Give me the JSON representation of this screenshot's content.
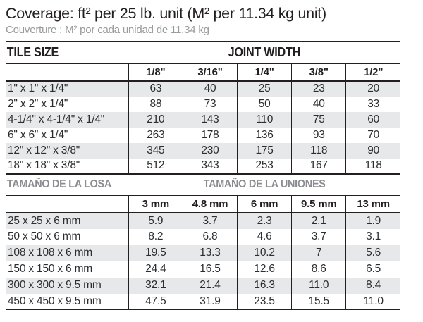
{
  "title": "Coverage: ft² per 25 lb. unit (M² per 11.34 kg unit)",
  "subtitle": "Couverture : M² por cada unidad de 11.34 kg",
  "colors": {
    "text": "#231f20",
    "muted_gray": "#97999c",
    "metric_header_gray": "#8a8c8f",
    "row_shade": "#e7e8e9",
    "rule": "#231f20"
  },
  "imperial_table": {
    "section_label": "TILE SIZE",
    "section_header": "JOINT WIDTH",
    "columns": [
      "1/8\"",
      "3/16\"",
      "1/4\"",
      "3/8\"",
      "1/2\""
    ],
    "rows": [
      {
        "label": "1\" x 1\" x 1/4\"",
        "values": [
          "63",
          "40",
          "25",
          "23",
          "20"
        ]
      },
      {
        "label": "2\" x 2\" x 1/4\"",
        "values": [
          "88",
          "73",
          "50",
          "40",
          "33"
        ]
      },
      {
        "label": "4-1/4\" x 4-1/4\" x 1/4\"",
        "values": [
          "210",
          "143",
          "110",
          "75",
          "60"
        ]
      },
      {
        "label": "6\" x 6\" x 1/4\"",
        "values": [
          "263",
          "178",
          "136",
          "93",
          "70"
        ]
      },
      {
        "label": "12\" x 12\" x 3/8\"",
        "values": [
          "345",
          "230",
          "175",
          "118",
          "90"
        ]
      },
      {
        "label": "18\" x 18\" x 3/8\"",
        "values": [
          "512",
          "343",
          "253",
          "167",
          "118"
        ]
      }
    ]
  },
  "metric_table": {
    "section_label": "TAMAÑO DE LA LOSA",
    "section_header": "TAMAÑO DE LA UNIONES",
    "columns": [
      "3 mm",
      "4.8 mm",
      "6 mm",
      "9.5 mm",
      "13 mm"
    ],
    "rows": [
      {
        "label": "25 x 25 x 6 mm",
        "values": [
          "5.9",
          "3.7",
          "2.3",
          "2.1",
          "1.9"
        ]
      },
      {
        "label": "50 x 50 x 6 mm",
        "values": [
          "8.2",
          "6.8",
          "4.6",
          "3.7",
          "3.1"
        ]
      },
      {
        "label": "108 x 108 x 6 mm",
        "values": [
          "19.5",
          "13.3",
          "10.2",
          "7",
          "5.6"
        ]
      },
      {
        "label": "150 x 150 x 6 mm",
        "values": [
          "24.4",
          "16.5",
          "12.6",
          "8.6",
          "6.5"
        ]
      },
      {
        "label": "300 x 300 x 9.5 mm",
        "values": [
          "32.1",
          "21.4",
          "16.3",
          "11.0",
          "8.4"
        ]
      },
      {
        "label": "450 x 450 x 9.5 mm",
        "values": [
          "47.5",
          "31.9",
          "23.5",
          "15.5",
          "11.0"
        ]
      }
    ]
  }
}
